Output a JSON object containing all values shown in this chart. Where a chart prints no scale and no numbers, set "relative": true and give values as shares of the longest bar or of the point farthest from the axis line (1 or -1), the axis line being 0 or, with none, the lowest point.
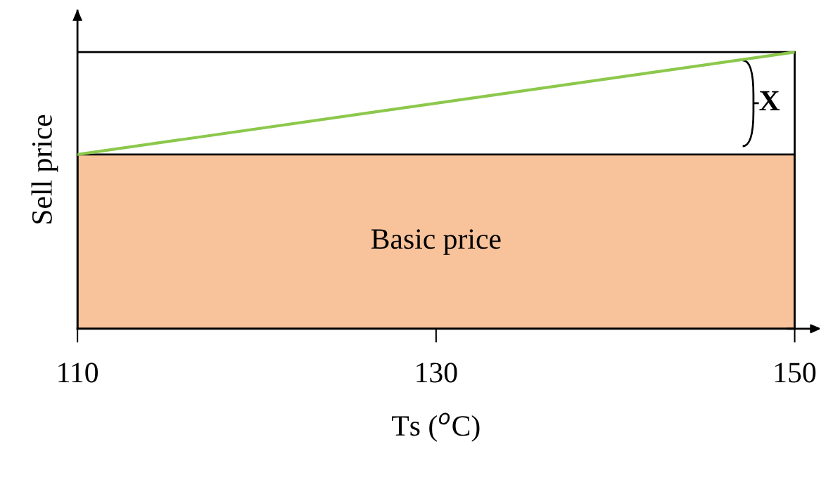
{
  "chart_data": {
    "type": "line",
    "relative": true,
    "xlabel": "Ts ($^{o}$C)",
    "ylabel": "Sell price",
    "xlim": [
      110,
      150
    ],
    "xticks": [
      110,
      130,
      150
    ],
    "grid": false,
    "legend": false,
    "series": [
      {
        "color": "#8cc84c",
        "x": [
          110,
          150
        ],
        "values": [
          0.63,
          1
        ]
      }
    ],
    "bands": [
      {
        "axis": "y",
        "from": 0,
        "to": 0.63,
        "label": "Basic price",
        "color": "#f8c29a"
      }
    ],
    "ref_lines": [
      {
        "axis": "y",
        "value": 1,
        "color": "#000000"
      },
      {
        "axis": "x",
        "value": 150,
        "color": "#000000"
      }
    ],
    "annotations": [
      "X"
    ]
  }
}
